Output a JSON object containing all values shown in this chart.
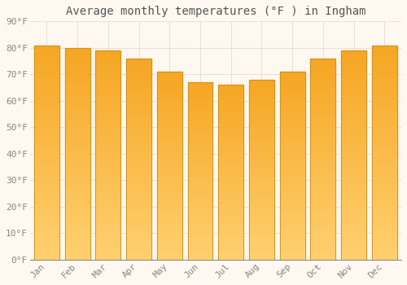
{
  "title": "Average monthly temperatures (°F ) in Ingham",
  "months": [
    "Jan",
    "Feb",
    "Mar",
    "Apr",
    "May",
    "Jun",
    "Jul",
    "Aug",
    "Sep",
    "Oct",
    "Nov",
    "Dec"
  ],
  "values": [
    81,
    80,
    79,
    76,
    71,
    67,
    66,
    68,
    71,
    76,
    79,
    81
  ],
  "bar_color_top": "#F5A623",
  "bar_color_bottom": "#FFD070",
  "bar_edge_color": "#C8901A",
  "background_color": "#FFF8F0",
  "plot_bg_color": "#FFF8F0",
  "grid_color": "#E8E0D8",
  "tick_label_color": "#888888",
  "title_color": "#555555",
  "ylim": [
    0,
    90
  ],
  "yticks": [
    0,
    10,
    20,
    30,
    40,
    50,
    60,
    70,
    80,
    90
  ],
  "ytick_labels": [
    "0°F",
    "10°F",
    "20°F",
    "30°F",
    "40°F",
    "50°F",
    "60°F",
    "70°F",
    "80°F",
    "90°F"
  ],
  "title_fontsize": 10,
  "tick_fontsize": 8,
  "bar_width": 0.82
}
